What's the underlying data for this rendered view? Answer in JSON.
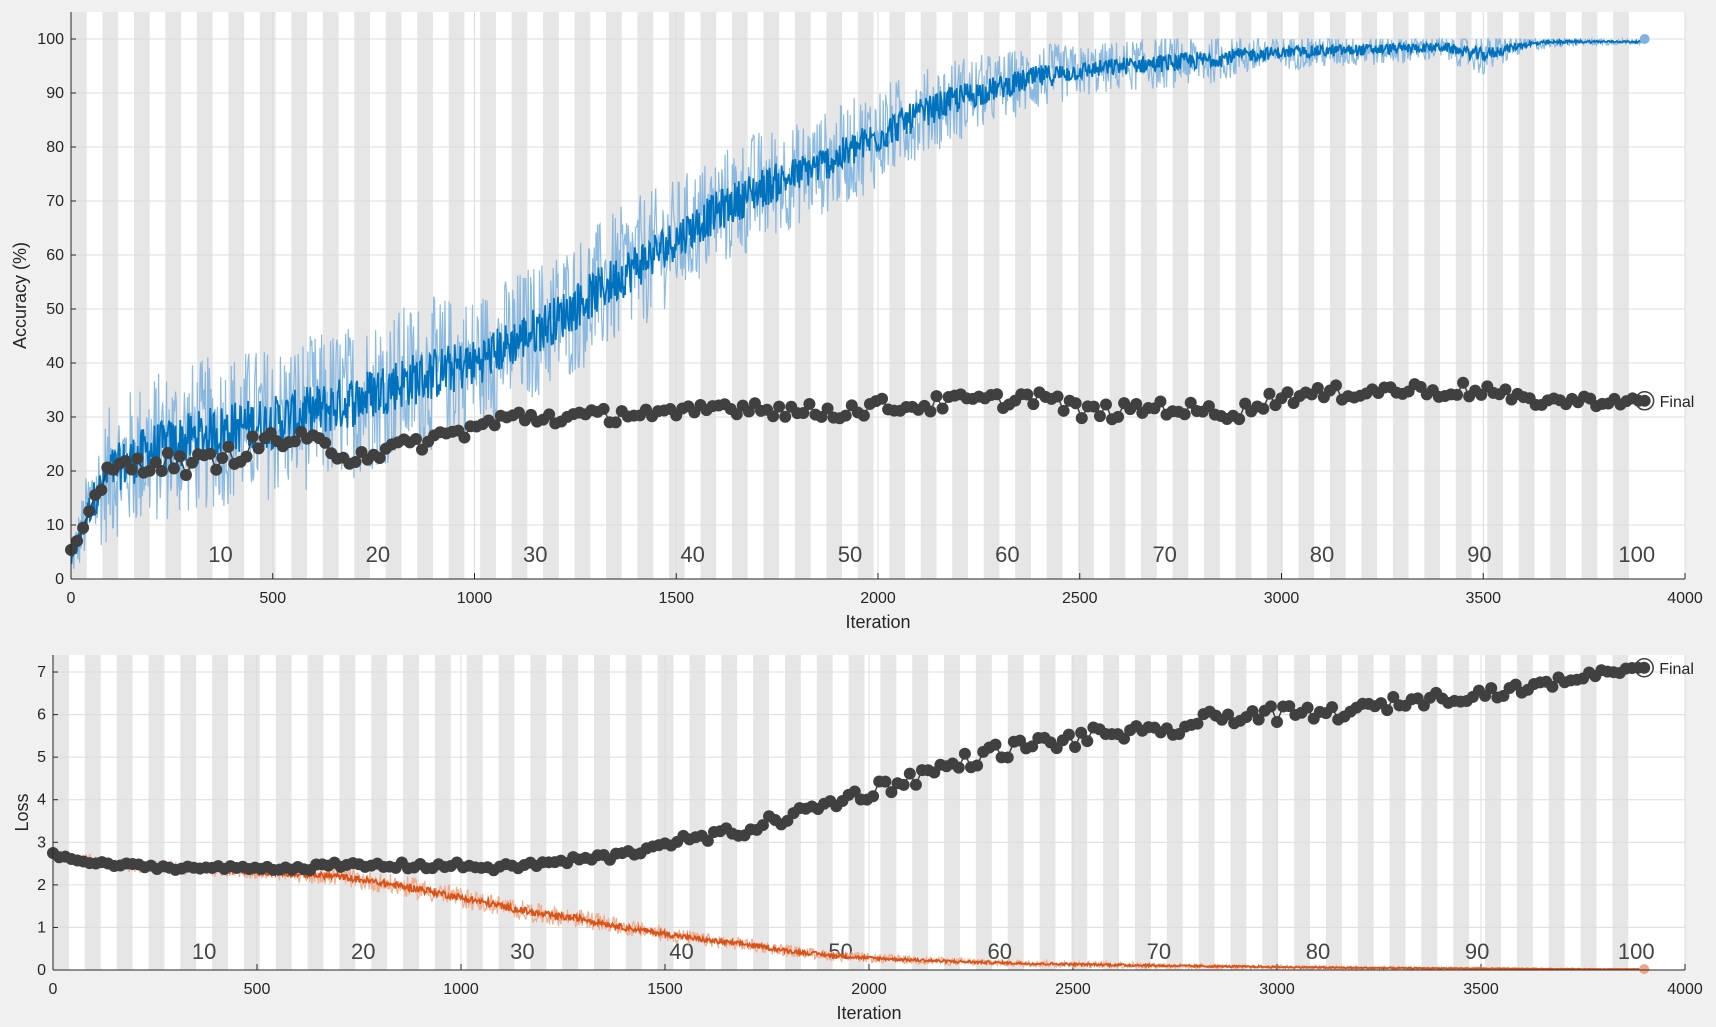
{
  "colors": {
    "figure_bg": "#f0f0f0",
    "plot_bg": "#ffffff",
    "epoch_band": "#e6e6e6",
    "grid": "#dcdcdc",
    "axis": "#262626",
    "training_accuracy": "#0072bd",
    "training_accuracy_raw": "#7fb3dd",
    "training_loss": "#d95319",
    "training_loss_raw": "#f0a585",
    "validation": "#404040"
  },
  "chart_data": [
    {
      "type": "line",
      "ylabel": "Accuracy (%)",
      "xlabel": "Iteration",
      "xlim": [
        0,
        4000
      ],
      "ylim": [
        0,
        105
      ],
      "xticks": [
        "0",
        "500",
        "1000",
        "1500",
        "2000",
        "2500",
        "3000",
        "3500",
        "4000"
      ],
      "yticks": [
        "0",
        "10",
        "20",
        "30",
        "40",
        "50",
        "60",
        "70",
        "80",
        "90",
        "100"
      ],
      "grid": true,
      "epochs": 100,
      "iterations_per_epoch": 39,
      "epoch_labels": [
        "10",
        "20",
        "30",
        "40",
        "50",
        "60",
        "70",
        "80",
        "90",
        "100"
      ],
      "final_label": "Final",
      "training_smoothed": {
        "x": [
          0,
          50,
          100,
          200,
          300,
          400,
          500,
          600,
          700,
          800,
          900,
          1000,
          1100,
          1200,
          1300,
          1400,
          1500,
          1600,
          1700,
          1800,
          1900,
          2000,
          2100,
          2200,
          2300,
          2400,
          2500,
          2600,
          2700,
          2800,
          2900,
          3000,
          3200,
          3400,
          3500,
          3600,
          3700,
          3900
        ],
        "values": [
          3,
          14,
          20,
          24,
          26,
          28,
          29,
          31,
          33,
          36,
          38,
          40,
          44,
          48,
          53,
          58,
          63,
          68,
          72,
          75,
          78,
          82,
          86,
          89,
          91,
          93,
          94,
          95,
          95.5,
          96,
          97,
          97.5,
          98,
          98.5,
          97,
          99,
          99.5,
          99.5
        ],
        "noise": [
          2,
          6,
          8,
          9,
          9,
          9,
          9,
          9,
          9,
          9,
          9,
          8,
          8,
          8,
          8,
          8,
          7,
          7,
          7,
          6,
          6,
          6,
          5,
          5,
          4,
          4,
          3,
          3,
          3,
          3,
          2.5,
          2,
          2,
          1.5,
          2.5,
          1,
          0.5,
          0.3
        ]
      },
      "validation": {
        "x": [
          0,
          50,
          100,
          200,
          300,
          400,
          500,
          600,
          700,
          800,
          900,
          1000,
          1100,
          1200,
          1300,
          1400,
          1500,
          1600,
          1700,
          1800,
          1900,
          2000,
          2100,
          2200,
          2300,
          2400,
          2500,
          2600,
          2700,
          2800,
          2900,
          3000,
          3100,
          3200,
          3300,
          3400,
          3500,
          3600,
          3700,
          3800,
          3900
        ],
        "values": [
          5,
          14,
          20,
          22,
          21,
          23,
          26,
          25,
          23,
          24,
          26,
          28,
          30,
          30,
          30,
          31,
          30,
          32,
          32,
          31,
          31,
          32,
          32,
          33,
          33,
          34,
          31,
          31,
          32,
          31,
          31,
          34,
          34,
          35,
          35,
          35,
          35,
          33,
          33,
          33,
          33
        ],
        "noise": [
          1,
          1.5,
          2,
          2,
          2,
          2,
          2,
          2,
          2,
          1.5,
          1.5,
          1.5,
          1.5,
          1.5,
          1.5,
          1.5,
          1.5,
          1.5,
          1.5,
          1.5,
          1.5,
          1.5,
          1.5,
          1.5,
          1.5,
          1.5,
          1.5,
          1.5,
          1.5,
          1.5,
          1.5,
          1.5,
          1.5,
          1.5,
          1.5,
          1.5,
          1.5,
          1,
          1,
          1,
          0.5
        ],
        "final": 33
      },
      "training_final": 100
    },
    {
      "type": "line",
      "ylabel": "Loss",
      "xlabel": "Iteration",
      "xlim": [
        0,
        4000
      ],
      "ylim": [
        0,
        7.4
      ],
      "xticks": [
        "0",
        "500",
        "1000",
        "1500",
        "2000",
        "2500",
        "3000",
        "3500",
        "4000"
      ],
      "yticks": [
        "0",
        "1",
        "2",
        "3",
        "4",
        "5",
        "6",
        "7"
      ],
      "grid": true,
      "epochs": 100,
      "iterations_per_epoch": 39,
      "epoch_labels": [
        "10",
        "20",
        "30",
        "40",
        "50",
        "60",
        "70",
        "80",
        "90",
        "100"
      ],
      "final_label": "Final",
      "training_smoothed": {
        "x": [
          0,
          100,
          200,
          300,
          400,
          500,
          600,
          700,
          800,
          900,
          1000,
          1100,
          1200,
          1300,
          1400,
          1500,
          1600,
          1700,
          1800,
          1900,
          2000,
          2200,
          2400,
          2600,
          2800,
          3000,
          3200,
          3400,
          3600,
          3800,
          3900
        ],
        "values": [
          2.7,
          2.55,
          2.45,
          2.4,
          2.35,
          2.3,
          2.25,
          2.2,
          2.05,
          1.9,
          1.7,
          1.5,
          1.3,
          1.2,
          1.0,
          0.85,
          0.7,
          0.6,
          0.45,
          0.35,
          0.28,
          0.2,
          0.15,
          0.12,
          0.09,
          0.07,
          0.05,
          0.04,
          0.03,
          0.02,
          0.02
        ],
        "noise": [
          0.08,
          0.1,
          0.1,
          0.1,
          0.1,
          0.1,
          0.12,
          0.14,
          0.15,
          0.16,
          0.15,
          0.15,
          0.15,
          0.14,
          0.12,
          0.12,
          0.1,
          0.1,
          0.09,
          0.08,
          0.07,
          0.06,
          0.05,
          0.05,
          0.04,
          0.03,
          0.03,
          0.02,
          0.015,
          0.01,
          0.01
        ]
      },
      "validation": {
        "x": [
          0,
          100,
          200,
          300,
          400,
          500,
          600,
          700,
          800,
          900,
          1000,
          1100,
          1200,
          1300,
          1400,
          1500,
          1600,
          1700,
          1800,
          1900,
          2000,
          2100,
          2200,
          2300,
          2400,
          2500,
          2600,
          2700,
          2800,
          2900,
          3000,
          3100,
          3200,
          3300,
          3400,
          3500,
          3600,
          3700,
          3800,
          3900
        ],
        "values": [
          2.7,
          2.5,
          2.45,
          2.4,
          2.4,
          2.4,
          2.4,
          2.45,
          2.45,
          2.45,
          2.45,
          2.4,
          2.5,
          2.6,
          2.7,
          3.0,
          3.1,
          3.3,
          3.6,
          3.9,
          4.2,
          4.5,
          4.8,
          5.1,
          5.3,
          5.4,
          5.6,
          5.5,
          5.8,
          6.0,
          6.0,
          6.0,
          6.1,
          6.3,
          6.4,
          6.5,
          6.6,
          6.8,
          7.0,
          7.1
        ],
        "noise": [
          0.05,
          0.05,
          0.05,
          0.05,
          0.05,
          0.05,
          0.06,
          0.08,
          0.08,
          0.08,
          0.08,
          0.08,
          0.08,
          0.1,
          0.1,
          0.1,
          0.12,
          0.15,
          0.15,
          0.15,
          0.2,
          0.2,
          0.2,
          0.2,
          0.2,
          0.2,
          0.2,
          0.2,
          0.2,
          0.2,
          0.2,
          0.2,
          0.15,
          0.15,
          0.15,
          0.15,
          0.12,
          0.1,
          0.08,
          0.05
        ],
        "final": 7.1
      },
      "training_final": 0.02
    }
  ]
}
